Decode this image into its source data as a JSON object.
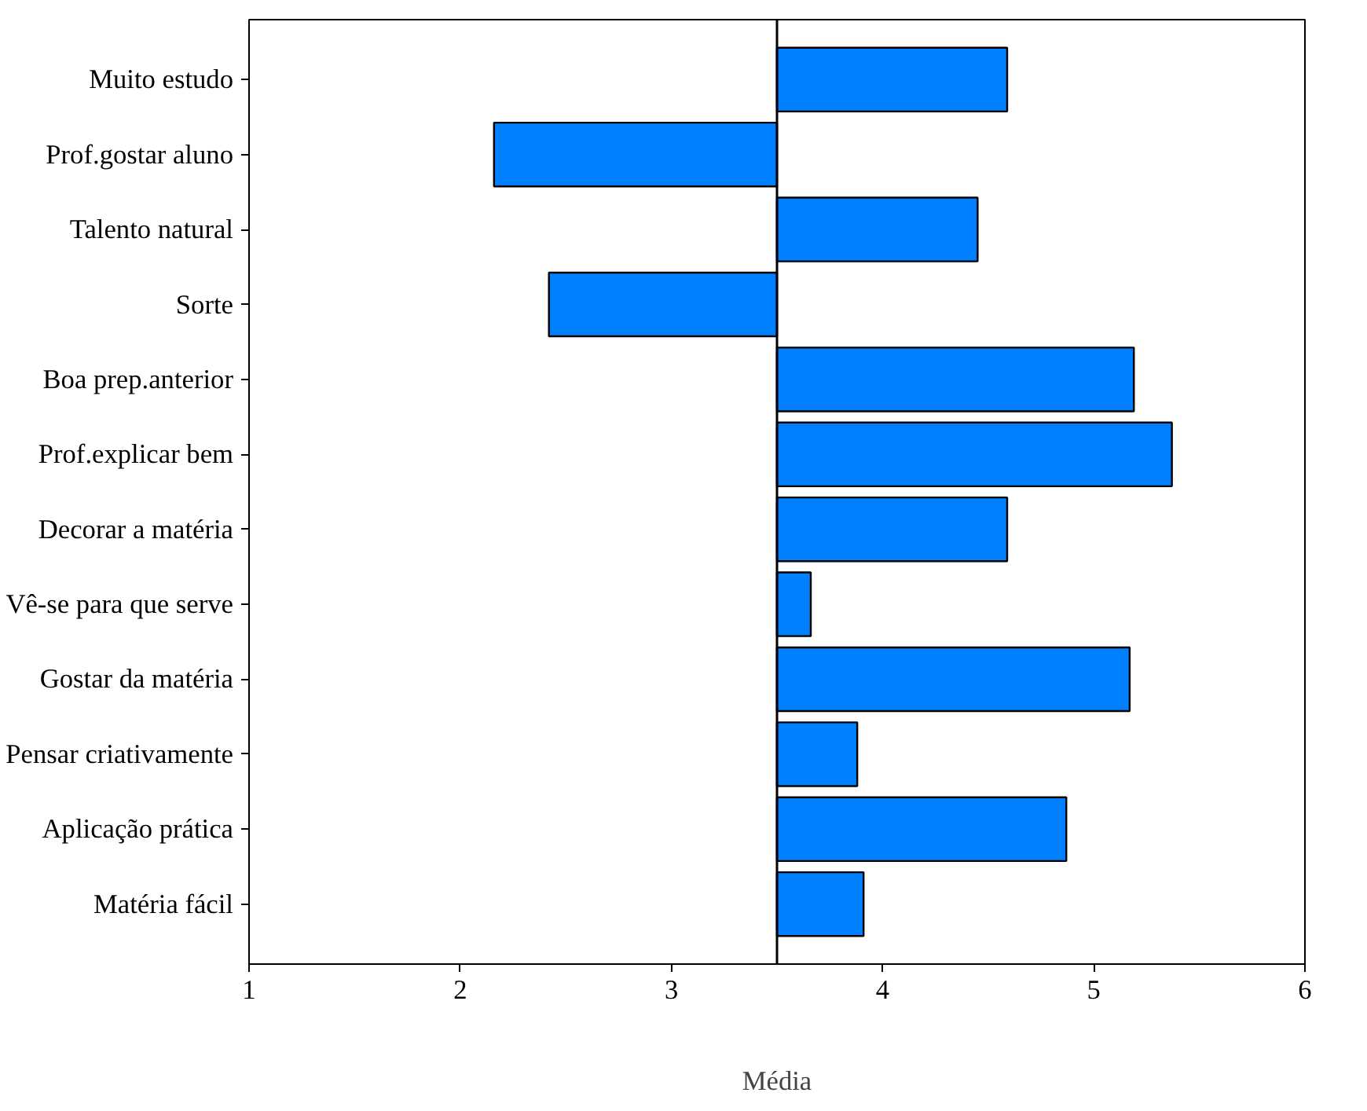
{
  "chart_data": {
    "type": "bar",
    "orientation": "horizontal",
    "xlabel": "Média",
    "categories": [
      "Muito estudo",
      "Prof.gostar aluno",
      "Talento natural",
      "Sorte",
      "Boa prep.anterior",
      "Prof.explicar bem",
      "Decorar a matéria",
      "Vê-se para que serve",
      "Gostar da matéria",
      "Pensar criativamente",
      "Aplicação prática",
      "Matéria fácil"
    ],
    "base": [
      3.5,
      3.5,
      3.5,
      3.5,
      3.5,
      3.5,
      3.5,
      3.5,
      3.5,
      3.5,
      3.5,
      3.5
    ],
    "values": [
      1.09,
      -1.34,
      0.95,
      -1.08,
      1.69,
      1.87,
      1.09,
      0.16,
      1.67,
      0.38,
      1.37,
      0.41
    ],
    "color": "#0080ff",
    "xlim": [
      1,
      6
    ],
    "xticks": [
      1,
      2,
      3,
      4,
      5,
      6
    ],
    "ref_lines": [
      {
        "axis": "x",
        "value": 3.5,
        "label": null,
        "color": "#000000"
      }
    ],
    "grid": false
  }
}
